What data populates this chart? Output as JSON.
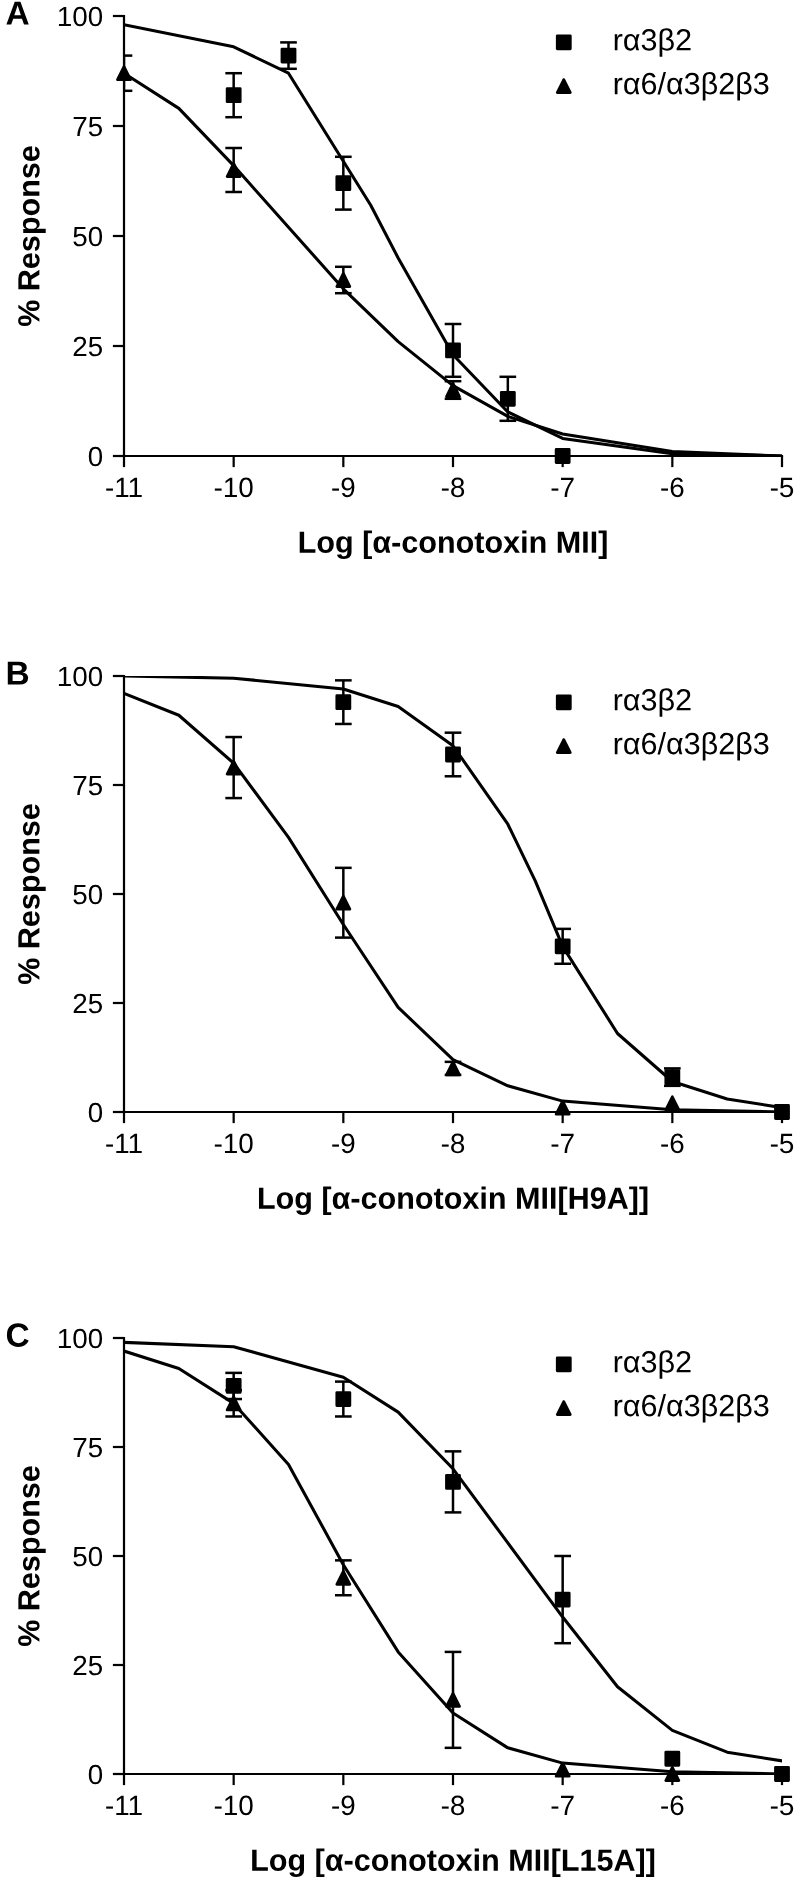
{
  "chart_data": [
    {
      "type": "scatter",
      "title": "A",
      "xlabel": "Log [α-conotoxin MII]",
      "ylabel": "% Response",
      "xlim": [
        -11,
        -5
      ],
      "xticks": [
        -11,
        -10,
        -9,
        -8,
        -7,
        -6,
        -5
      ],
      "ylim": [
        0,
        100
      ],
      "yticks": [
        0,
        25,
        50,
        75,
        100
      ],
      "grid": false,
      "legend": "top right",
      "series": [
        {
          "name": "rα3β2",
          "color": "#000000",
          "marker": "square",
          "x": [
            -10,
            -9.5,
            -9,
            -8,
            -7.5,
            -7
          ],
          "values": [
            82,
            91,
            62,
            24,
            13,
            0
          ],
          "errors": [
            5,
            3,
            6,
            6,
            5,
            null
          ]
        },
        {
          "name": "rα6/α3β2β3",
          "color": "#000000",
          "marker": "triangle",
          "x": [
            -11,
            -10,
            -9,
            -8
          ],
          "values": [
            87,
            65,
            40,
            15
          ],
          "errors": [
            4,
            5,
            3,
            2
          ]
        },
        {
          "type": "line",
          "color": "#000000",
          "x": [
            -11,
            -10,
            -9.5,
            -9,
            -8.75,
            -8.5,
            -8,
            -7.5,
            -7,
            -6,
            -5
          ],
          "values": [
            98,
            93,
            87,
            67,
            57,
            45,
            23,
            10,
            4,
            0.5,
            0
          ]
        },
        {
          "type": "line",
          "color": "#000000",
          "x": [
            -11,
            -10.5,
            -10,
            -9.5,
            -9,
            -8.5,
            -8,
            -7.5,
            -7,
            -6,
            -5
          ],
          "values": [
            87,
            79,
            66,
            52,
            38,
            26,
            16,
            9,
            5,
            1,
            0
          ]
        }
      ]
    },
    {
      "type": "scatter",
      "title": "B",
      "xlabel": "Log [α-conotoxin MII[H9A]]",
      "ylabel": "% Response",
      "xlim": [
        -11,
        -5
      ],
      "xticks": [
        -11,
        -10,
        -9,
        -8,
        -7,
        -6,
        -5
      ],
      "ylim": [
        0,
        100
      ],
      "yticks": [
        0,
        25,
        50,
        75,
        100
      ],
      "grid": false,
      "legend": "top right",
      "series": [
        {
          "name": "rα3β2",
          "color": "#000000",
          "marker": "square",
          "x": [
            -9,
            -8,
            -7,
            -6,
            -5
          ],
          "values": [
            94,
            82,
            38,
            8,
            0
          ],
          "errors": [
            5,
            5,
            4,
            2,
            null
          ]
        },
        {
          "name": "rα6/α3β2β3",
          "color": "#000000",
          "marker": "triangle",
          "x": [
            -10,
            -9,
            -8,
            -7,
            -6
          ],
          "values": [
            79,
            48,
            10,
            1,
            2
          ],
          "errors": [
            7,
            8,
            1.5,
            null,
            null
          ]
        },
        {
          "type": "line",
          "color": "#000000",
          "x": [
            -11,
            -10,
            -9,
            -8.5,
            -8,
            -7.5,
            -7.25,
            -7,
            -6.5,
            -6,
            -5.5,
            -5
          ],
          "values": [
            100,
            99.5,
            97,
            93,
            84,
            66,
            53,
            38,
            18,
            7,
            3,
            1
          ]
        },
        {
          "type": "line",
          "color": "#000000",
          "x": [
            -11,
            -10.5,
            -10,
            -9.5,
            -9,
            -8.5,
            -8,
            -7.5,
            -7,
            -6,
            -5
          ],
          "values": [
            96,
            91,
            80,
            63,
            43,
            24,
            12,
            6,
            2.5,
            0.5,
            0
          ]
        }
      ]
    },
    {
      "type": "scatter",
      "title": "C",
      "xlabel": "Log [α-conotoxin MII[L15A]]",
      "ylabel": "% Response",
      "xlim": [
        -11,
        -5
      ],
      "xticks": [
        -11,
        -10,
        -9,
        -8,
        -7,
        -6,
        -5
      ],
      "ylim": [
        0,
        100
      ],
      "yticks": [
        0,
        25,
        50,
        75,
        100
      ],
      "grid": false,
      "legend": "top right",
      "series": [
        {
          "name": "rα3β2",
          "color": "#000000",
          "marker": "square",
          "x": [
            -10,
            -9,
            -8,
            -7,
            -6,
            -5
          ],
          "values": [
            89,
            86,
            67,
            40,
            3.5,
            0
          ],
          "errors": [
            3,
            4,
            7,
            10,
            null,
            null
          ]
        },
        {
          "name": "rα6/α3β2β3",
          "color": "#000000",
          "marker": "triangle",
          "x": [
            -10,
            -9,
            -8,
            -7,
            -6
          ],
          "values": [
            85,
            45,
            17,
            1,
            0
          ],
          "errors": [
            3,
            4,
            11,
            null,
            null
          ]
        },
        {
          "type": "line",
          "color": "#000000",
          "x": [
            -11,
            -10,
            -9,
            -8.5,
            -8,
            -7.5,
            -7,
            -6.5,
            -6,
            -5.5,
            -5
          ],
          "values": [
            99,
            98,
            91,
            83,
            70,
            53,
            36,
            20,
            10,
            5,
            3
          ]
        },
        {
          "type": "line",
          "color": "#000000",
          "x": [
            -11,
            -10.5,
            -10,
            -9.5,
            -9,
            -8.5,
            -8,
            -7.5,
            -7,
            -6,
            -5
          ],
          "values": [
            97,
            93,
            85,
            71,
            48,
            28,
            14,
            6,
            2.5,
            0.5,
            0
          ]
        }
      ]
    }
  ]
}
